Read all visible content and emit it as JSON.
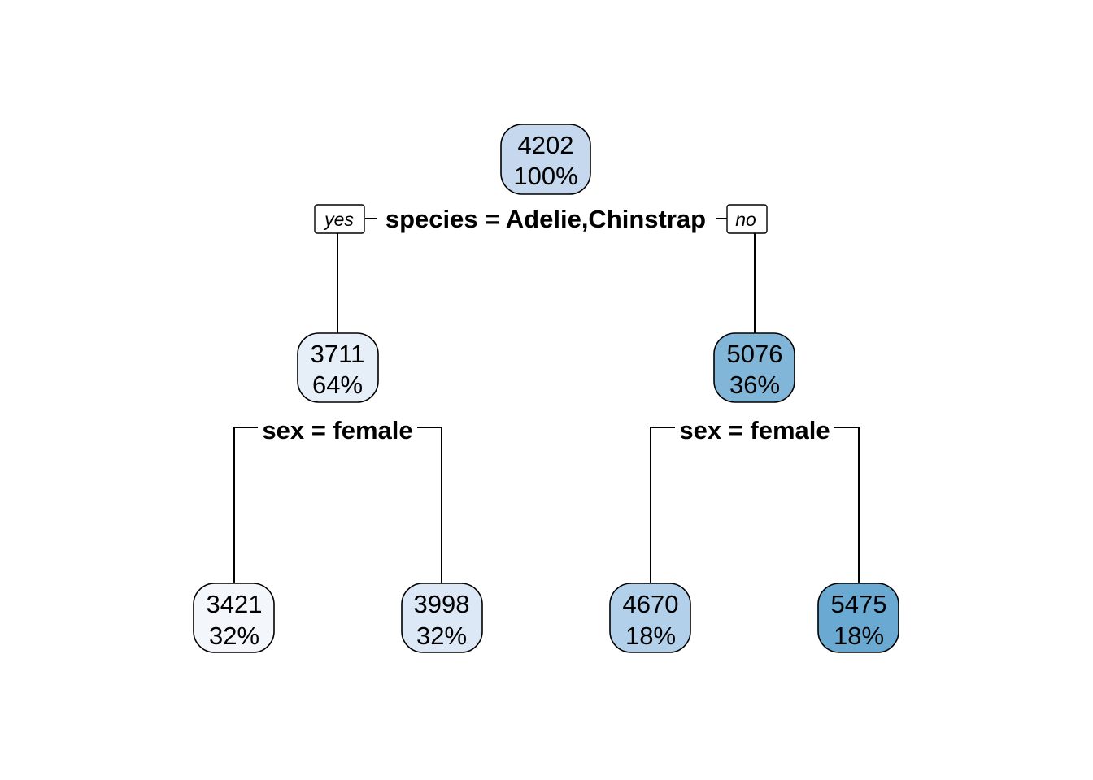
{
  "tree": {
    "root": {
      "value": "4202",
      "percent": "100%",
      "color": "#c6d8ee"
    },
    "root_split": {
      "label": "species = Adelie,Chinstrap",
      "yes_label": "yes",
      "no_label": "no"
    },
    "left": {
      "value": "3711",
      "percent": "64%",
      "color": "#e6eef8"
    },
    "right": {
      "value": "5076",
      "percent": "36%",
      "color": "#82b6d8"
    },
    "left_split": {
      "label": "sex = female"
    },
    "right_split": {
      "label": "sex = female"
    },
    "leaves": [
      {
        "value": "3421",
        "percent": "32%",
        "color": "#f3f7fc"
      },
      {
        "value": "3998",
        "percent": "32%",
        "color": "#dce8f5"
      },
      {
        "value": "4670",
        "percent": "18%",
        "color": "#b2d0e9"
      },
      {
        "value": "5475",
        "percent": "18%",
        "color": "#69a9d2"
      }
    ]
  }
}
